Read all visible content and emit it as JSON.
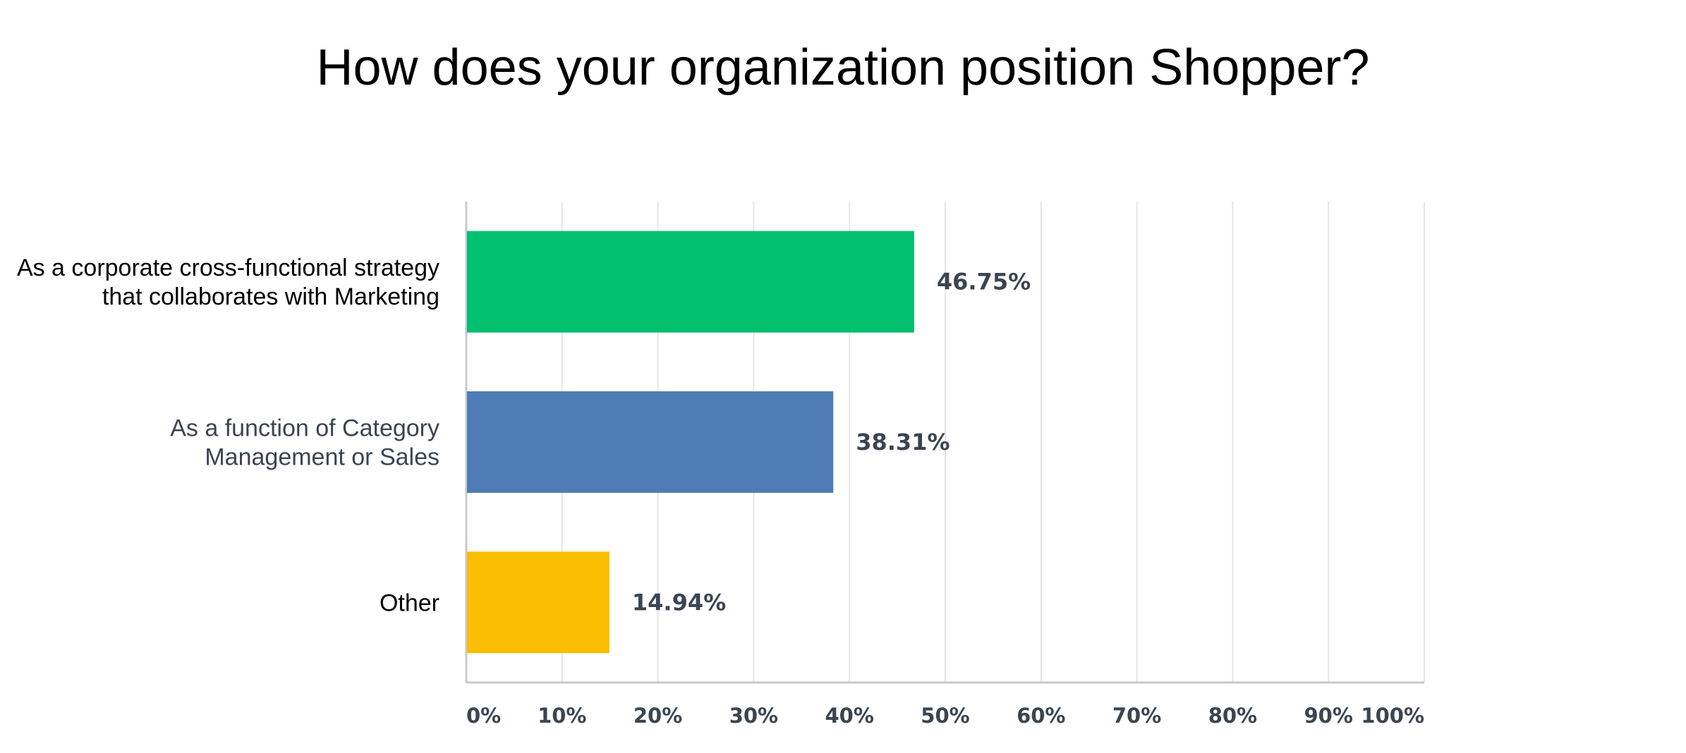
{
  "chart_data": {
    "type": "bar",
    "orientation": "horizontal",
    "title": "How does your organization position Shopper?",
    "categories": [
      [
        "As a corporate cross-functional strategy",
        "that collaborates with Marketing"
      ],
      [
        "As a function of Category",
        "Management or Sales"
      ],
      [
        "Other"
      ]
    ],
    "values": [
      46.75,
      38.31,
      14.94
    ],
    "value_labels": [
      "46.75%",
      "38.31%",
      "14.94%"
    ],
    "colors": [
      "#00bf6f",
      "#507cb6",
      "#f9be00"
    ],
    "category_label_colors": [
      "#000000",
      "#3b4452",
      "#000000"
    ],
    "xlim": [
      0,
      100
    ],
    "xticks": [
      "0%",
      "10%",
      "20%",
      "30%",
      "40%",
      "50%",
      "60%",
      "70%",
      "80%",
      "90%",
      "100%"
    ],
    "xlabel": "",
    "ylabel": "",
    "grid": true,
    "legend": "none"
  }
}
